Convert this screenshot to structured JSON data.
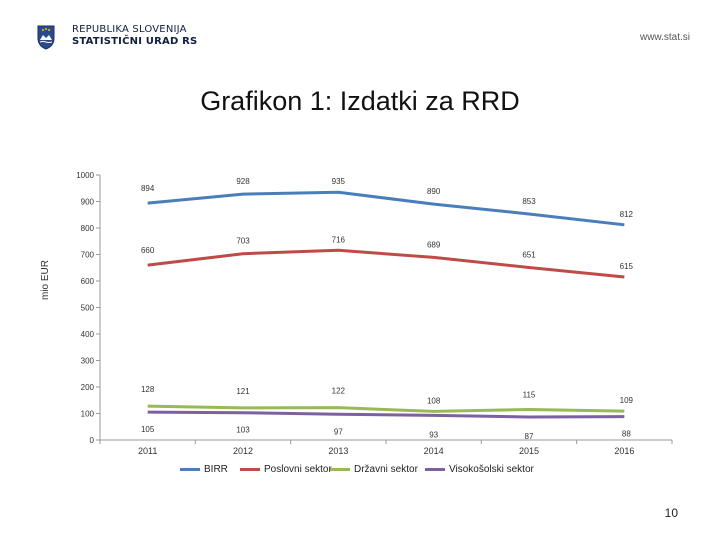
{
  "header": {
    "org_line1": "REPUBLIKA SLOVENIJA",
    "org_line2": "STATISTIČNI URAD RS",
    "website": "www.stat.si"
  },
  "chart_data": {
    "type": "line",
    "title": "Grafikon 1: Izdatki za RRD",
    "ylabel": "mio EUR",
    "xlabel": "",
    "ylim": [
      0,
      1000
    ],
    "yticks": [
      0,
      100,
      200,
      300,
      400,
      500,
      600,
      700,
      800,
      900,
      1000
    ],
    "categories": [
      "2011",
      "2012",
      "2013",
      "2014",
      "2015",
      "2016"
    ],
    "grid": false,
    "legend_position": "bottom",
    "series": [
      {
        "name": "BIRR",
        "color": "#4a7ebb",
        "values": [
          894,
          928,
          935,
          890,
          853,
          812
        ]
      },
      {
        "name": "Poslovni sektor",
        "color": "#be4b48",
        "values": [
          660,
          703,
          716,
          689,
          651,
          615
        ]
      },
      {
        "name": "Državni sektor",
        "color": "#98b954",
        "values": [
          128,
          121,
          122,
          108,
          115,
          109
        ]
      },
      {
        "name": "Visokošolski sektor",
        "color": "#7d60a0",
        "values": [
          105,
          103,
          97,
          93,
          87,
          88
        ]
      }
    ]
  },
  "page_number": "10"
}
